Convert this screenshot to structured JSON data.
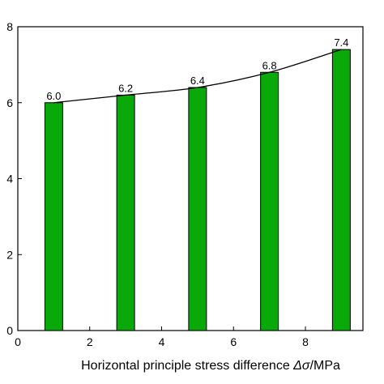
{
  "chart_data": {
    "type": "bar",
    "x": [
      1,
      3,
      5,
      7,
      9
    ],
    "values": [
      6.0,
      6.2,
      6.4,
      6.8,
      7.4
    ],
    "data_labels": [
      "6.0",
      "6.2",
      "6.4",
      "6.8",
      "7.4"
    ],
    "xlabel_main": "Horizontal principle stress difference ",
    "xlabel_symbol": "Δσ",
    "xlabel_unit": "/MPa",
    "ylabel": "",
    "xlim": [
      0,
      9.6
    ],
    "ylim": [
      0,
      8
    ],
    "xticks": [
      0,
      2,
      4,
      6,
      8
    ],
    "yticks": [
      0,
      2,
      4,
      6,
      8
    ],
    "overlay": "line through bar tops",
    "bar_color": "#0aa90a",
    "line_color": "#000000",
    "grid": false,
    "legend": "none"
  }
}
